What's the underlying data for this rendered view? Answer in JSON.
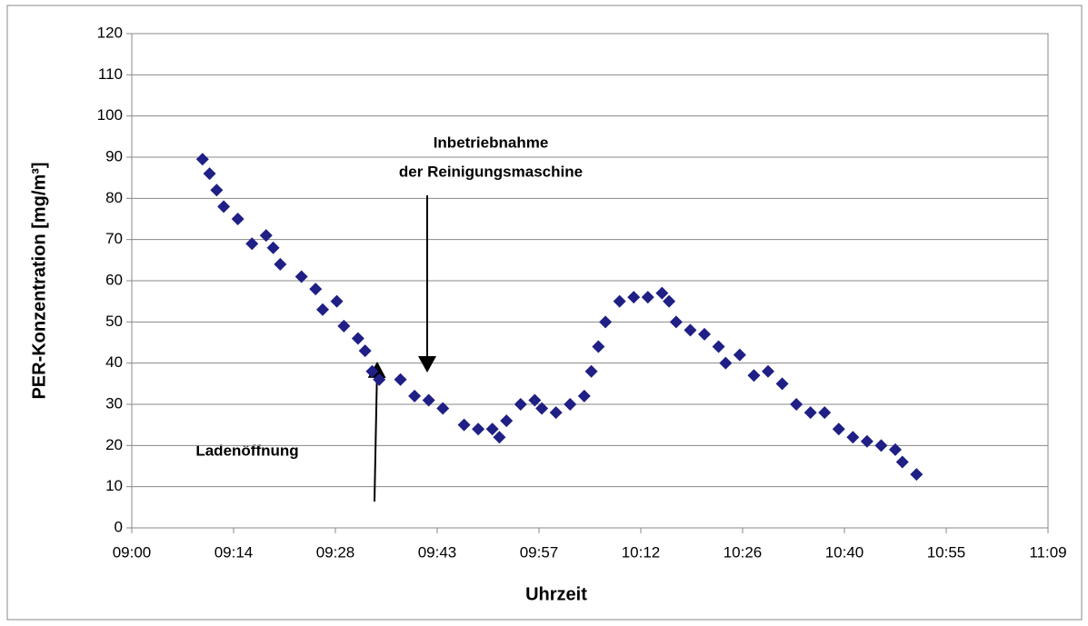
{
  "chart_data": {
    "type": "scatter",
    "y_label": "PER-Konzentration [mg/m³]",
    "x_label": "Uhrzeit",
    "annotations": [
      "Inbetriebnahme",
      "der Reinigungsmaschine",
      "Ladenöffnung"
    ],
    "color": "#1f1f86",
    "grid": true,
    "xlim": [
      "09:00",
      "11:09:36"
    ],
    "xticks": [
      "09:00",
      {
        "value": "09:14:24",
        "label": "09:14"
      },
      {
        "value": "09:28:48",
        "label": "09:28"
      },
      {
        "value": "09:43:12",
        "label": "09:43"
      },
      {
        "value": "09:57:36",
        "label": "09:57"
      },
      {
        "value": "10:12",
        "label": "10:12"
      },
      {
        "value": "10:26:24",
        "label": "10:26"
      },
      {
        "value": "10:40:48",
        "label": "10:40"
      },
      {
        "value": "10:55:12",
        "label": "10:55"
      },
      {
        "value": "11:09:36",
        "label": "11:09"
      }
    ],
    "ylim": [
      0,
      120
    ],
    "yticks": [
      0,
      10,
      20,
      30,
      40,
      50,
      60,
      70,
      80,
      90,
      100,
      110,
      120
    ],
    "x": [
      "09:10",
      "09:11",
      "09:12",
      "09:13",
      "09:15",
      "09:17",
      "09:19",
      "09:20",
      "09:21",
      "09:24",
      "09:26",
      "09:27",
      "09:29",
      "09:30",
      "09:32",
      "09:33",
      "09:34",
      "09:35",
      "09:38",
      "09:40",
      "09:42",
      "09:44",
      "09:47",
      "09:49",
      "09:51",
      "09:52",
      "09:53",
      "09:55",
      "09:57",
      "09:58",
      "10:00",
      "10:02",
      "10:04",
      "10:05",
      "10:06",
      "10:07",
      "10:09",
      "10:11",
      "10:13",
      "10:15",
      "10:16",
      "10:17",
      "10:19",
      "10:21",
      "10:23",
      "10:24",
      "10:26",
      "10:28",
      "10:30",
      "10:32",
      "10:34",
      "10:36",
      "10:38",
      "10:40",
      "10:42",
      "10:44",
      "10:46",
      "10:48",
      "10:49",
      "10:51"
    ],
    "values": [
      89.5,
      86,
      82,
      78,
      75,
      69,
      71,
      68,
      64,
      61,
      58,
      53,
      55,
      49,
      46,
      43,
      38,
      36,
      36,
      32,
      31,
      29,
      25,
      24,
      24,
      22,
      26,
      30,
      31,
      29,
      28,
      30,
      32,
      38,
      44,
      50,
      55,
      56,
      56,
      57,
      55,
      50,
      48,
      47,
      44,
      40,
      42,
      37,
      38,
      35,
      30,
      28,
      28,
      24,
      22,
      21,
      20,
      19,
      16,
      13
    ]
  }
}
